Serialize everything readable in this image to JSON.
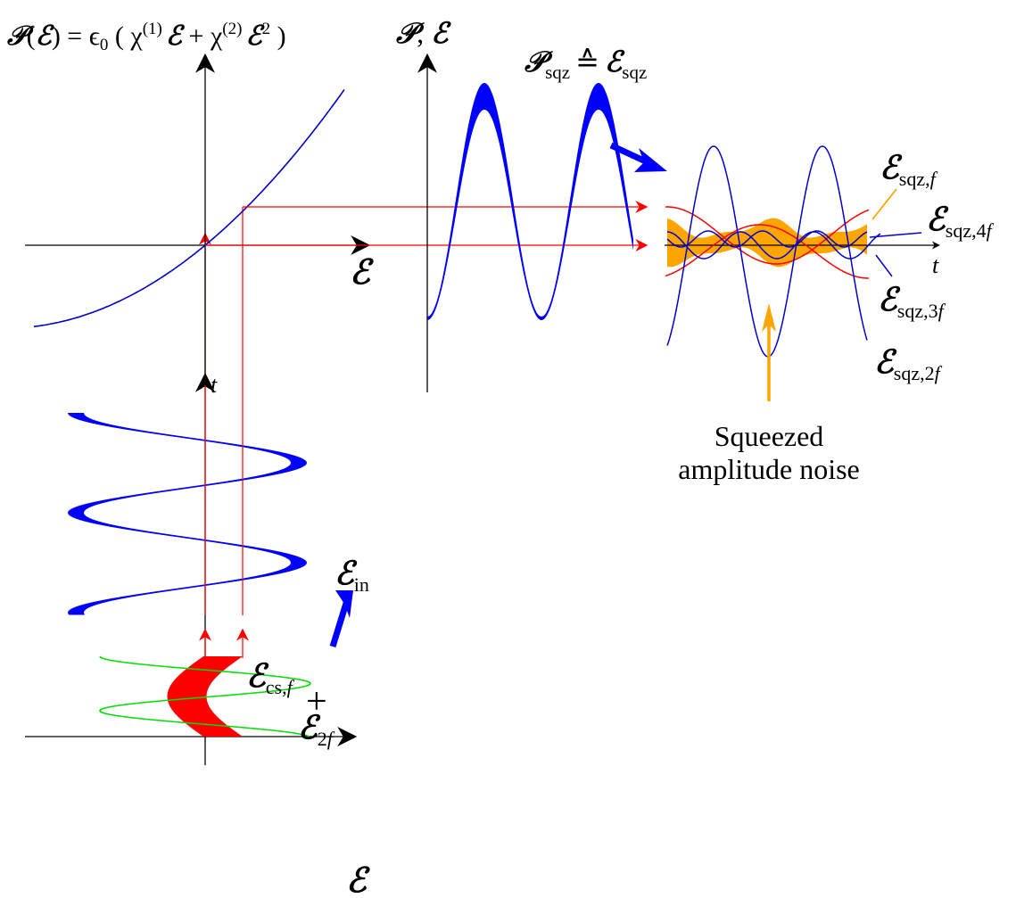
{
  "colors": {
    "axis": "#000000",
    "response_curve": "#0000cc",
    "input_wave": "#0000ff",
    "polarization_wave": "#0000ff",
    "harmonics": "#0000cc",
    "input_field": "#ff0000",
    "second_harmonic": "#00dd00",
    "squeezed_band": "#ffa500",
    "squeezed_envelope": "#ff0000",
    "projection_arrows": "#ff0000",
    "process_arrows": "#0000ff"
  },
  "symbols": {
    "field": "ℰ",
    "polarization": "𝒫",
    "permittivity": "ϵ",
    "chi": "χ",
    "corresponds": "≙"
  },
  "labels": {
    "equation": {
      "lhs_open": "(",
      "lhs_close": ") = ",
      "eps0_sub": "0",
      "open_paren": " ( ",
      "chi1_sup": "(1)",
      "plus": " + ",
      "chi2_sup": "(2)",
      "square_sup": "2",
      "close_paren": " )"
    },
    "top_right_axis_sep": ", ",
    "squeezed_label_sub": "sqz",
    "chi_axis_label": "ℰ",
    "time_label": "t",
    "input_label_sub": "in",
    "coherent_label_sub": "cs,",
    "coherent_label_f": "f",
    "second_harmonic_sub": "2",
    "second_harmonic_f": "f",
    "plus_sign": "+",
    "harmonic_f_sub": "sqz,",
    "harmonic_f_f": "f",
    "harmonic_4f_sub": "sqz,4",
    "harmonic_4f_f": "f",
    "harmonic_3f_sub": "sqz,3",
    "harmonic_3f_f": "f",
    "harmonic_2f_sub": "sqz,2",
    "harmonic_2f_f": "f",
    "noise_line1": "Squeezed",
    "noise_line2": "amplitude noise"
  }
}
